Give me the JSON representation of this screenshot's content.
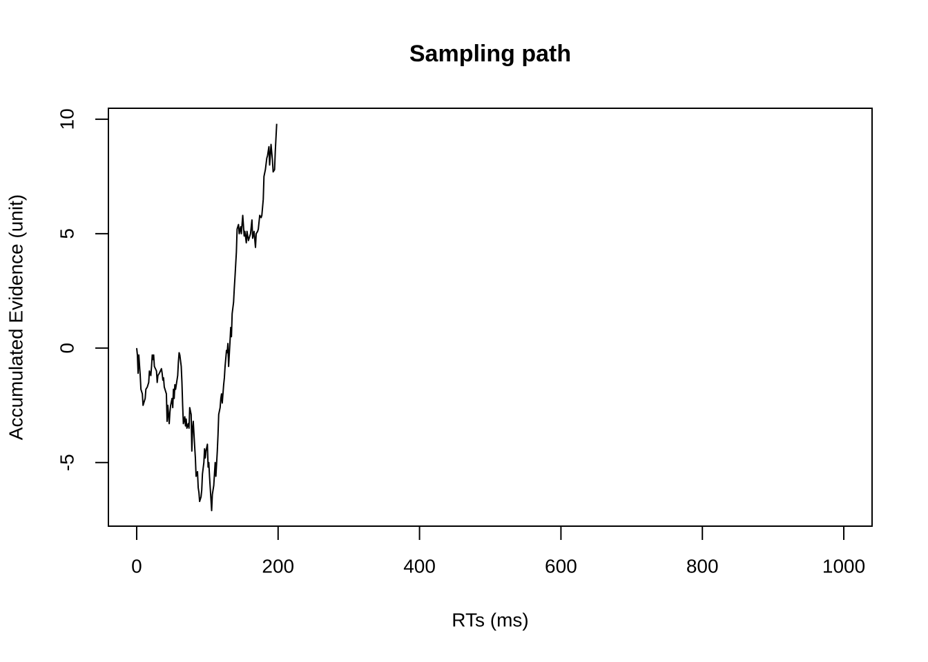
{
  "chart_data": {
    "type": "line",
    "title": "Sampling path",
    "xlabel": "RTs (ms)",
    "ylabel": "Accumulated Evidence (unit)",
    "color": "#000000",
    "x": [
      0,
      1,
      2,
      3,
      5,
      6,
      8,
      9,
      12,
      13,
      15,
      17,
      18,
      20,
      21,
      22,
      23,
      24,
      25,
      28,
      29,
      30,
      32,
      35,
      36,
      37,
      38,
      39,
      42,
      43,
      44,
      46,
      47,
      48,
      50,
      51,
      52,
      53,
      54,
      55,
      58,
      59,
      60,
      61,
      63,
      64,
      65,
      66,
      68,
      69,
      70,
      71,
      73,
      74,
      75,
      77,
      78,
      79,
      80,
      82,
      83,
      84,
      86,
      87,
      88,
      89,
      91,
      92,
      93,
      95,
      96,
      97,
      98,
      100,
      101,
      102,
      103,
      105,
      106,
      107,
      109,
      110,
      111,
      112,
      114,
      115,
      116,
      118,
      119,
      120,
      121,
      123,
      124,
      125,
      127,
      128,
      129,
      130,
      132,
      133,
      134,
      135,
      137,
      138,
      139,
      141,
      142,
      144,
      145,
      147,
      148,
      150,
      152,
      153,
      155,
      156,
      158,
      160,
      161,
      163,
      164,
      166,
      168,
      169,
      171,
      172,
      174,
      176,
      177,
      179,
      180,
      182,
      184,
      185,
      187,
      188,
      190,
      192,
      193,
      195,
      196,
      198
    ],
    "values": [
      0,
      -0.3,
      -1.1,
      -0.3,
      -1.2,
      -1.8,
      -2.0,
      -2.5,
      -2.2,
      -1.8,
      -1.7,
      -1.5,
      -1.0,
      -1.2,
      -0.8,
      -0.3,
      -0.5,
      -0.3,
      -0.8,
      -1.0,
      -1.5,
      -1.2,
      -1.1,
      -0.9,
      -1.1,
      -1.4,
      -1.3,
      -1.7,
      -2.0,
      -3.2,
      -2.5,
      -3.3,
      -2.8,
      -2.5,
      -2.2,
      -2.6,
      -1.8,
      -2.2,
      -1.6,
      -1.8,
      -1.2,
      -0.6,
      -0.2,
      -0.3,
      -0.8,
      -1.5,
      -2.5,
      -3.3,
      -3.0,
      -3.4,
      -3.1,
      -3.5,
      -3.3,
      -3.5,
      -2.6,
      -2.9,
      -4.5,
      -3.5,
      -3.2,
      -4.3,
      -4.8,
      -5.6,
      -5.4,
      -6.1,
      -6.3,
      -6.7,
      -6.5,
      -6.2,
      -5.5,
      -5.0,
      -4.4,
      -4.8,
      -4.5,
      -4.2,
      -5.2,
      -5.0,
      -5.6,
      -6.6,
      -7.1,
      -6.4,
      -6.0,
      -5.5,
      -5.0,
      -5.6,
      -4.5,
      -3.8,
      -2.9,
      -2.6,
      -2.2,
      -2.0,
      -2.4,
      -1.6,
      -1.3,
      -0.8,
      -0.1,
      -0.2,
      0.2,
      -0.8,
      0.3,
      0.9,
      0.5,
      1.5,
      2.0,
      2.6,
      3.1,
      4.2,
      5.2,
      5.4,
      5.0,
      5.3,
      5.0,
      5.8,
      4.9,
      5.1,
      4.6,
      5.1,
      4.7,
      4.9,
      5.0,
      5.6,
      4.8,
      5.1,
      4.4,
      5.0,
      5.1,
      5.2,
      5.8,
      5.7,
      5.8,
      6.5,
      7.5,
      7.8,
      8.3,
      8.4,
      8.8,
      8.0,
      8.9,
      8.2,
      7.7,
      7.8,
      8.6,
      9.8
    ],
    "xlim": [
      -40,
      1040
    ],
    "ylim": [
      -7.78,
      10.48
    ],
    "xticks": [
      0,
      200,
      400,
      600,
      800,
      1000
    ],
    "yticks": [
      -5,
      0,
      5,
      10
    ]
  }
}
